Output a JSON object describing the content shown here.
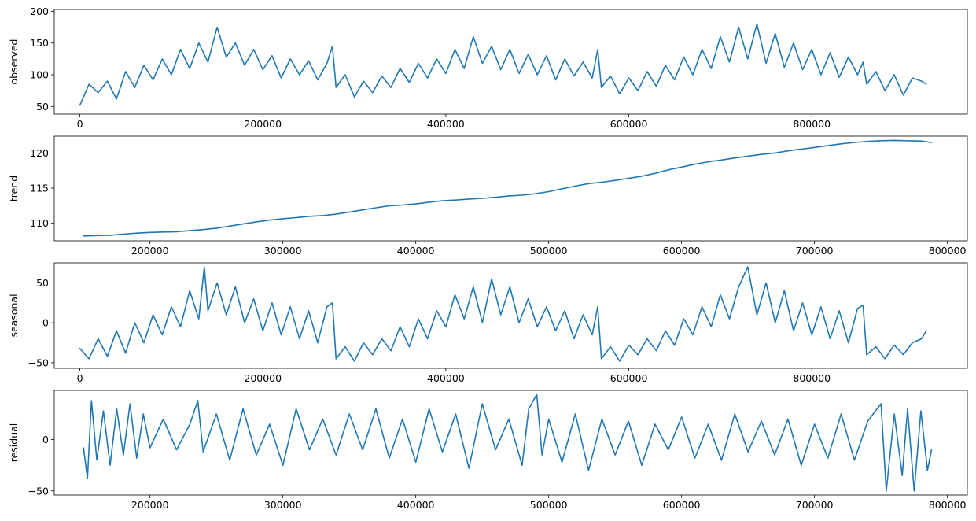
{
  "chart_data": [
    {
      "type": "line",
      "ylabel": "observed",
      "xlim": [
        -28000,
        970000
      ],
      "ylim": [
        38,
        203
      ],
      "xticks": [
        0,
        200000,
        400000,
        600000,
        800000
      ],
      "xtick_labels": [
        "0",
        "200000",
        "400000",
        "600000",
        "800000"
      ],
      "yticks": [
        50,
        100,
        150,
        200
      ],
      "ytick_labels": [
        "50",
        "100",
        "150",
        "200"
      ],
      "x": [
        0,
        10000,
        20000,
        30000,
        40000,
        50000,
        60000,
        70000,
        80000,
        90000,
        100000,
        110000,
        120000,
        130000,
        140000,
        150000,
        160000,
        170000,
        180000,
        190000,
        200000,
        210000,
        220000,
        230000,
        240000,
        250000,
        260000,
        270000,
        276000,
        280000,
        290000,
        300000,
        310000,
        320000,
        330000,
        340000,
        350000,
        360000,
        370000,
        380000,
        390000,
        400000,
        410000,
        420000,
        430000,
        440000,
        450000,
        460000,
        470000,
        480000,
        490000,
        500000,
        510000,
        520000,
        530000,
        540000,
        550000,
        560000,
        566000,
        570000,
        580000,
        590000,
        600000,
        610000,
        620000,
        630000,
        640000,
        650000,
        660000,
        670000,
        680000,
        690000,
        700000,
        710000,
        720000,
        730000,
        740000,
        750000,
        760000,
        770000,
        780000,
        790000,
        800000,
        810000,
        820000,
        830000,
        840000,
        850000,
        856000,
        860000,
        870000,
        880000,
        890000,
        900000,
        910000,
        920000,
        925000
      ],
      "y": [
        52,
        85,
        72,
        90,
        62,
        105,
        80,
        115,
        92,
        125,
        100,
        140,
        110,
        150,
        120,
        175,
        128,
        150,
        115,
        140,
        108,
        130,
        95,
        125,
        100,
        122,
        92,
        118,
        145,
        80,
        100,
        65,
        90,
        72,
        98,
        80,
        110,
        88,
        118,
        95,
        125,
        102,
        140,
        110,
        160,
        118,
        145,
        108,
        140,
        102,
        132,
        100,
        130,
        92,
        125,
        98,
        120,
        95,
        140,
        80,
        98,
        70,
        95,
        75,
        105,
        82,
        115,
        92,
        128,
        100,
        140,
        110,
        160,
        120,
        175,
        125,
        180,
        118,
        165,
        112,
        150,
        108,
        140,
        100,
        135,
        96,
        128,
        100,
        120,
        85,
        105,
        75,
        100,
        68,
        95,
        90,
        85
      ]
    },
    {
      "type": "line",
      "ylabel": "trend",
      "xlim": [
        128000,
        815000
      ],
      "ylim": [
        107.5,
        122.4
      ],
      "xticks": [
        200000,
        300000,
        400000,
        500000,
        600000,
        700000,
        800000
      ],
      "xtick_labels": [
        "200000",
        "300000",
        "400000",
        "500000",
        "600000",
        "700000",
        "800000"
      ],
      "yticks": [
        110,
        115,
        120
      ],
      "ytick_labels": [
        "110",
        "115",
        "120"
      ],
      "x": [
        150000,
        160000,
        170000,
        180000,
        190000,
        200000,
        210000,
        220000,
        230000,
        240000,
        250000,
        260000,
        270000,
        280000,
        290000,
        300000,
        310000,
        320000,
        330000,
        340000,
        350000,
        360000,
        370000,
        380000,
        390000,
        400000,
        410000,
        420000,
        430000,
        440000,
        450000,
        460000,
        470000,
        480000,
        490000,
        500000,
        510000,
        520000,
        530000,
        540000,
        550000,
        560000,
        570000,
        580000,
        590000,
        600000,
        610000,
        620000,
        630000,
        640000,
        650000,
        660000,
        670000,
        680000,
        690000,
        700000,
        710000,
        720000,
        730000,
        740000,
        750000,
        760000,
        770000,
        780000,
        788000
      ],
      "y": [
        108.2,
        108.25,
        108.3,
        108.45,
        108.6,
        108.7,
        108.75,
        108.8,
        108.95,
        109.1,
        109.3,
        109.6,
        109.9,
        110.2,
        110.45,
        110.65,
        110.8,
        111.0,
        111.1,
        111.3,
        111.6,
        111.9,
        112.2,
        112.5,
        112.6,
        112.75,
        113.0,
        113.2,
        113.3,
        113.45,
        113.55,
        113.7,
        113.9,
        114.0,
        114.2,
        114.5,
        114.9,
        115.3,
        115.65,
        115.85,
        116.1,
        116.4,
        116.7,
        117.1,
        117.6,
        118.0,
        118.4,
        118.75,
        119.0,
        119.3,
        119.55,
        119.8,
        120.0,
        120.3,
        120.55,
        120.8,
        121.05,
        121.3,
        121.5,
        121.65,
        121.75,
        121.8,
        121.75,
        121.7,
        121.5
      ]
    },
    {
      "type": "line",
      "ylabel": "seasonal",
      "xlim": [
        -28000,
        970000
      ],
      "ylim": [
        -57,
        75
      ],
      "xticks": [
        0,
        200000,
        400000,
        600000,
        800000
      ],
      "xtick_labels": [
        "0",
        "200000",
        "400000",
        "600000",
        "800000"
      ],
      "yticks": [
        -50,
        0,
        50
      ],
      "ytick_labels": [
        "−50",
        "0",
        "50"
      ],
      "x": [
        0,
        10000,
        20000,
        30000,
        40000,
        50000,
        60000,
        70000,
        80000,
        90000,
        100000,
        110000,
        120000,
        130000,
        136000,
        140000,
        150000,
        160000,
        170000,
        180000,
        190000,
        200000,
        210000,
        220000,
        230000,
        240000,
        250000,
        260000,
        270000,
        276000,
        280000,
        290000,
        300000,
        310000,
        320000,
        330000,
        340000,
        350000,
        360000,
        370000,
        380000,
        390000,
        400000,
        410000,
        420000,
        430000,
        440000,
        450000,
        460000,
        470000,
        480000,
        490000,
        500000,
        510000,
        520000,
        530000,
        540000,
        550000,
        560000,
        566000,
        570000,
        580000,
        590000,
        600000,
        610000,
        620000,
        630000,
        640000,
        650000,
        660000,
        670000,
        680000,
        690000,
        700000,
        710000,
        720000,
        730000,
        740000,
        750000,
        760000,
        770000,
        780000,
        790000,
        800000,
        810000,
        820000,
        830000,
        840000,
        850000,
        856000,
        860000,
        870000,
        880000,
        890000,
        900000,
        910000,
        920000,
        925000
      ],
      "y": [
        -32,
        -45,
        -20,
        -42,
        -10,
        -38,
        0,
        -25,
        10,
        -15,
        20,
        -5,
        40,
        5,
        70,
        15,
        50,
        10,
        45,
        0,
        30,
        -10,
        25,
        -15,
        20,
        -20,
        15,
        -25,
        20,
        25,
        -45,
        -30,
        -48,
        -25,
        -40,
        -20,
        -35,
        -5,
        -30,
        5,
        -20,
        15,
        -5,
        35,
        5,
        45,
        0,
        55,
        10,
        45,
        0,
        30,
        -5,
        20,
        -10,
        15,
        -20,
        10,
        -15,
        20,
        -45,
        -30,
        -48,
        -28,
        -40,
        -20,
        -35,
        -10,
        -28,
        5,
        -15,
        20,
        -5,
        35,
        5,
        45,
        70,
        10,
        50,
        0,
        40,
        -10,
        25,
        -15,
        20,
        -20,
        15,
        -25,
        18,
        22,
        -40,
        -30,
        -45,
        -28,
        -40,
        -25,
        -20,
        -10
      ]
    },
    {
      "type": "line",
      "ylabel": "residual",
      "xlim": [
        128000,
        815000
      ],
      "ylim": [
        -54,
        48
      ],
      "xticks": [
        200000,
        300000,
        400000,
        500000,
        600000,
        700000,
        800000
      ],
      "xtick_labels": [
        "200000",
        "300000",
        "400000",
        "500000",
        "600000",
        "700000",
        "800000"
      ],
      "yticks": [
        -50,
        0
      ],
      "ytick_labels": [
        "−50",
        "0"
      ],
      "x": [
        150000,
        153000,
        156000,
        160000,
        165000,
        170000,
        175000,
        180000,
        185000,
        190000,
        195000,
        200000,
        210000,
        220000,
        230000,
        236000,
        240000,
        250000,
        260000,
        270000,
        280000,
        290000,
        300000,
        310000,
        320000,
        330000,
        340000,
        350000,
        360000,
        370000,
        380000,
        390000,
        400000,
        410000,
        420000,
        430000,
        440000,
        450000,
        460000,
        470000,
        480000,
        485000,
        491000,
        495000,
        500000,
        510000,
        520000,
        530000,
        540000,
        550000,
        560000,
        570000,
        580000,
        590000,
        600000,
        610000,
        620000,
        630000,
        640000,
        650000,
        660000,
        670000,
        680000,
        690000,
        700000,
        710000,
        720000,
        730000,
        740000,
        750000,
        754000,
        760000,
        766000,
        770000,
        775000,
        780000,
        785000,
        788000
      ],
      "y": [
        -8,
        -38,
        38,
        -20,
        28,
        -25,
        30,
        -15,
        35,
        -18,
        25,
        -8,
        20,
        -10,
        15,
        38,
        -12,
        25,
        -20,
        30,
        -15,
        15,
        -25,
        30,
        -10,
        20,
        -15,
        25,
        -10,
        30,
        -18,
        20,
        -22,
        30,
        -12,
        25,
        -28,
        35,
        -10,
        20,
        -25,
        30,
        44,
        -15,
        20,
        -22,
        25,
        -30,
        20,
        -15,
        18,
        -25,
        15,
        -10,
        22,
        -18,
        15,
        -20,
        25,
        -12,
        18,
        -15,
        20,
        -25,
        15,
        -18,
        25,
        -20,
        18,
        35,
        -50,
        25,
        -35,
        30,
        -50,
        28,
        -30,
        -10
      ]
    }
  ],
  "style": {
    "line_color": "#1f77b4"
  }
}
